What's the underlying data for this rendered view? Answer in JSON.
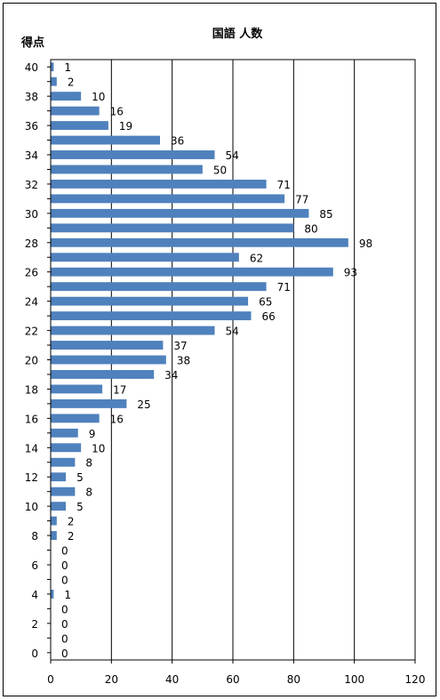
{
  "chart_data": {
    "type": "bar",
    "orientation": "horizontal",
    "title": "国語 人数",
    "ylabel": "得点",
    "xlabel": "",
    "xlim": [
      0,
      120
    ],
    "x_ticks": [
      0,
      20,
      40,
      60,
      80,
      100,
      120
    ],
    "y_ticks": [
      40,
      38,
      36,
      34,
      32,
      30,
      28,
      26,
      24,
      22,
      20,
      18,
      16,
      14,
      12,
      10,
      8,
      6,
      4,
      2,
      0
    ],
    "grid": "vertical",
    "bar_color": "#4f81bd",
    "categories": [
      40,
      39,
      38,
      37,
      36,
      35,
      34,
      33,
      32,
      31,
      30,
      29,
      28,
      27,
      26,
      25,
      24,
      23,
      22,
      21,
      20,
      19,
      18,
      17,
      16,
      15,
      14,
      13,
      12,
      11,
      10,
      9,
      8,
      7,
      6,
      5,
      4,
      3,
      2,
      1,
      0
    ],
    "values": [
      1,
      2,
      10,
      16,
      19,
      36,
      54,
      50,
      71,
      77,
      85,
      80,
      98,
      62,
      93,
      71,
      65,
      66,
      54,
      37,
      38,
      34,
      17,
      25,
      16,
      9,
      10,
      8,
      5,
      8,
      5,
      2,
      2,
      0,
      0,
      0,
      1,
      0,
      0,
      0,
      0
    ]
  }
}
